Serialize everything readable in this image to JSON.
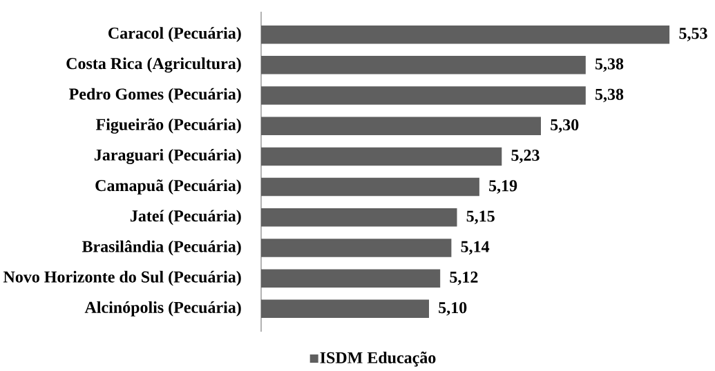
{
  "chart_data": {
    "type": "bar",
    "orientation": "horizontal",
    "categories": [
      "Caracol (Pecuária)",
      "Costa Rica (Agricultura)",
      "Pedro Gomes (Pecuária)",
      "Figueirão (Pecuária)",
      "Jaraguari (Pecuária)",
      "Camapuã (Pecuária)",
      "Jateí (Pecuária)",
      "Brasilândia (Pecuária)",
      "Novo Horizonte do Sul (Pecuária)",
      "Alcinópolis (Pecuária)"
    ],
    "series": [
      {
        "name": "ISDM Educação",
        "color": "#5f5f5f",
        "values": [
          5.53,
          5.38,
          5.38,
          5.3,
          5.23,
          5.19,
          5.15,
          5.14,
          5.12,
          5.1
        ],
        "value_labels": [
          "5,53",
          "5,38",
          "5,38",
          "5,30",
          "5,23",
          "5,19",
          "5,15",
          "5,14",
          "5,12",
          "5,10"
        ]
      }
    ],
    "xlim": [
      4.8,
      5.53
    ],
    "tick_labels": "y",
    "legend": "bottom"
  }
}
